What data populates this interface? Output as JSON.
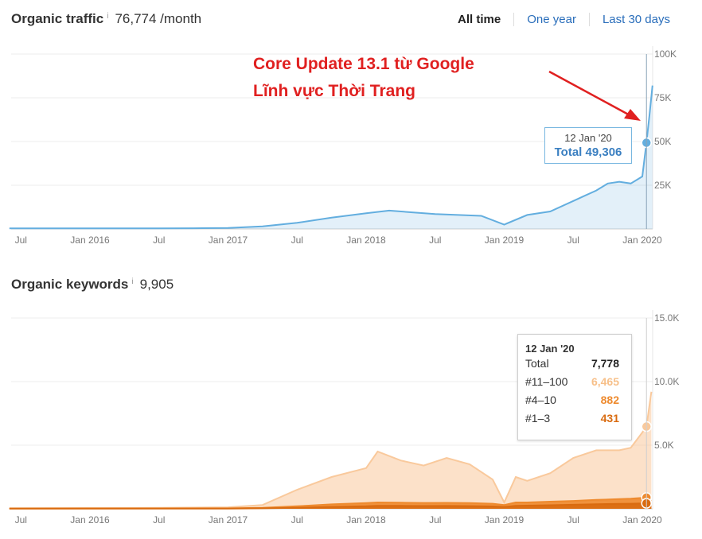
{
  "traffic_header": {
    "title": "Organic traffic",
    "info": "i",
    "value": "76,774 /month"
  },
  "keywords_header": {
    "title": "Organic keywords",
    "info": "i",
    "value": "9,905"
  },
  "time_ranges": [
    {
      "label": "All time",
      "active": true
    },
    {
      "label": "One year",
      "active": false
    },
    {
      "label": "Last 30 days",
      "active": false
    }
  ],
  "annotation": {
    "line1": "Core Update 13.1 từ Google",
    "line2": "Lĩnh vực Thời Trang",
    "color": "#e02020"
  },
  "x_tick_labels": [
    "Jul",
    "Jan 2016",
    "Jul",
    "Jan 2017",
    "Jul",
    "Jan 2018",
    "Jul",
    "Jan 2019",
    "Jul",
    "Jan 2020"
  ],
  "traffic_tooltip": {
    "date": "12 Jan '20",
    "label": "Total 49,306"
  },
  "keywords_tooltip": {
    "date": "12 Jan '20",
    "rows": [
      {
        "label": "Total",
        "value": "7,778",
        "color": "#222222"
      },
      {
        "label": "#11–100",
        "value": "6,465",
        "color": "#f7c08a"
      },
      {
        "label": "#4–10",
        "value": "882",
        "color": "#ee8a2e"
      },
      {
        "label": "#1–3",
        "value": "431",
        "color": "#d96b10"
      }
    ]
  },
  "chart_data": [
    {
      "type": "area",
      "title": "Organic traffic",
      "x": [
        "2015-06",
        "2015-09",
        "2016-01",
        "2016-04",
        "2016-07",
        "2016-10",
        "2017-01",
        "2017-04",
        "2017-07",
        "2017-10",
        "2018-01",
        "2018-03",
        "2018-05",
        "2018-07",
        "2018-09",
        "2018-11",
        "2019-01",
        "2019-03",
        "2019-05",
        "2019-07",
        "2019-08",
        "2019-09",
        "2019-10",
        "2019-11",
        "2019-12",
        "2020-01",
        "2020-01-12",
        "2020-01-20",
        "2020-01-28"
      ],
      "series": [
        {
          "name": "Total",
          "color": "#63aedf",
          "values": [
            300,
            300,
            300,
            300,
            300,
            400,
            600,
            1500,
            3500,
            6500,
            9000,
            10500,
            9500,
            8500,
            8000,
            7500,
            2500,
            8000,
            10000,
            16000,
            19000,
            22000,
            26000,
            27000,
            26000,
            30000,
            49306,
            65000,
            82000
          ]
        }
      ],
      "yticks": [
        "25K",
        "50K",
        "75K",
        "100K"
      ],
      "ylim": [
        0,
        100000
      ],
      "grid": true
    },
    {
      "type": "area",
      "title": "Organic keywords",
      "x": [
        "2015-06",
        "2016-01",
        "2016-07",
        "2017-01",
        "2017-04",
        "2017-07",
        "2017-10",
        "2018-01",
        "2018-02",
        "2018-04",
        "2018-06",
        "2018-08",
        "2018-10",
        "2018-12",
        "2019-01",
        "2019-02",
        "2019-03",
        "2019-05",
        "2019-07",
        "2019-09",
        "2019-11",
        "2019-12",
        "2020-01",
        "2020-01-12",
        "2020-01-25"
      ],
      "series": [
        {
          "name": "#11–100",
          "color": "#f9c99c",
          "values": [
            50,
            60,
            80,
            120,
            300,
            1500,
            2500,
            3200,
            4500,
            3800,
            3400,
            4000,
            3500,
            2300,
            500,
            2500,
            2200,
            2800,
            4000,
            4600,
            4600,
            4800,
            6000,
            6465,
            9200
          ]
        },
        {
          "name": "#4–10",
          "color": "#ee8a2e",
          "values": [
            20,
            25,
            30,
            40,
            80,
            200,
            350,
            450,
            500,
            480,
            460,
            470,
            450,
            400,
            300,
            500,
            500,
            560,
            620,
            700,
            760,
            800,
            860,
            882,
            950
          ]
        },
        {
          "name": "#1–3",
          "color": "#d96b10",
          "values": [
            10,
            12,
            15,
            20,
            40,
            80,
            150,
            200,
            240,
            230,
            220,
            225,
            210,
            190,
            150,
            240,
            250,
            280,
            320,
            360,
            390,
            400,
            420,
            431,
            460
          ]
        }
      ],
      "yticks": [
        "5.0K",
        "10.0K",
        "15.0K"
      ],
      "ylim": [
        0,
        15000
      ],
      "grid": true
    }
  ]
}
